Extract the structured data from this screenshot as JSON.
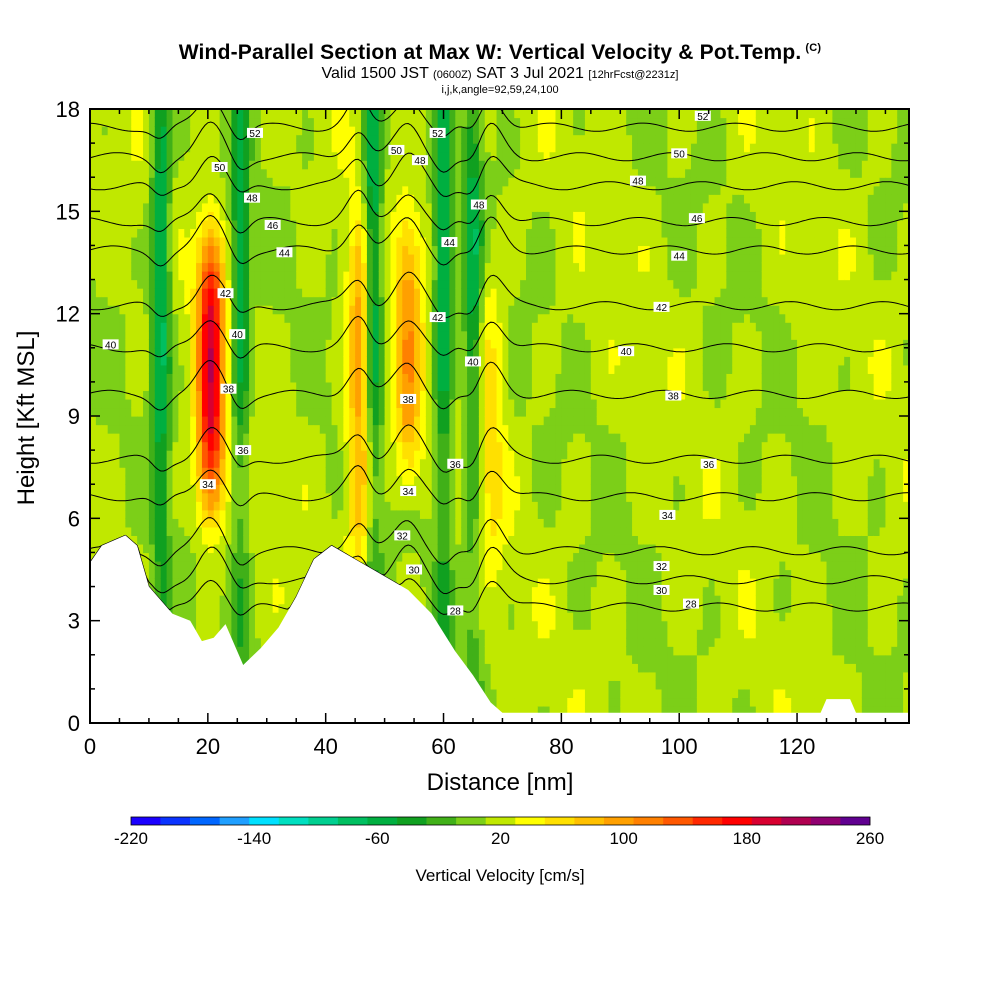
{
  "header": {
    "title": "Wind-Parallel Section at Max W: Vertical Velocity & Pot.Temp.",
    "copyright": "(C)",
    "valid_prefix": "Valid 1500 JST",
    "valid_zulu": "(0600Z)",
    "valid_date": "SAT 3 Jul 2021",
    "forecast": "[12hrFcst@2231z]",
    "indices": "i,j,k,angle=92,59,24,100"
  },
  "chart_data": {
    "type": "heatmap",
    "title": "Wind-Parallel Section at Max W: Vertical Velocity & Pot.Temp.",
    "xlabel": "Distance [nm]",
    "ylabel": "Height [Kft MSL]",
    "xlim": [
      0,
      139
    ],
    "ylim": [
      0,
      18
    ],
    "x_ticks": [
      0,
      20,
      40,
      60,
      80,
      100,
      120
    ],
    "y_ticks": [
      0,
      3,
      6,
      9,
      12,
      15,
      18
    ],
    "colorbar": {
      "label": "Vertical Velocity [cm/s]",
      "tick_values": [
        -220,
        -140,
        -60,
        20,
        100,
        180,
        260
      ],
      "tick_labels": [
        "-220",
        "-140",
        "-60",
        "20",
        "100",
        "180",
        "260"
      ],
      "colors": [
        "#1a00ff",
        "#0a33ff",
        "#0066ff",
        "#1f9fff",
        "#00e0ff",
        "#00dfc0",
        "#00cf90",
        "#00bf60",
        "#00af40",
        "#10a020",
        "#40b018",
        "#7ccf18",
        "#c0e800",
        "#ffff00",
        "#ffe000",
        "#ffc000",
        "#ffa000",
        "#ff8000",
        "#ff5800",
        "#ff2800",
        "#ff0000",
        "#d80030",
        "#b00050",
        "#900070",
        "#600090"
      ]
    },
    "updrafts": [
      {
        "x": 20.5,
        "z_min": 7.5,
        "z_max": 13,
        "w_max": 190
      },
      {
        "x": 46,
        "z_min": 6,
        "z_max": 13.5,
        "w_max": 110
      },
      {
        "x": 54,
        "z_min": 8.5,
        "z_max": 13.5,
        "w_max": 100
      },
      {
        "x": 68,
        "z_min": 6,
        "z_max": 12,
        "w_max": 60
      }
    ],
    "downdrafts": [
      {
        "x": 12,
        "w_min": -80
      },
      {
        "x": 25.5,
        "w_min": -60
      },
      {
        "x": 48,
        "w_min": -90
      },
      {
        "x": 60,
        "w_min": -70
      },
      {
        "x": 65,
        "w_min": -60
      }
    ],
    "terrain": [
      [
        0,
        4.7
      ],
      [
        2,
        5.2
      ],
      [
        6,
        5.5
      ],
      [
        8,
        5.2
      ],
      [
        10,
        4
      ],
      [
        14,
        3.2
      ],
      [
        17,
        3
      ],
      [
        19,
        2.4
      ],
      [
        21,
        2.5
      ],
      [
        23,
        2.9
      ],
      [
        26,
        1.7
      ],
      [
        29,
        2.2
      ],
      [
        32,
        2.8
      ],
      [
        35,
        3.7
      ],
      [
        38,
        4.8
      ],
      [
        41,
        5.2
      ],
      [
        45,
        4.8
      ],
      [
        49,
        4.4
      ],
      [
        54,
        3.9
      ],
      [
        58,
        3.2
      ],
      [
        62,
        2.1
      ],
      [
        65,
        1.4
      ],
      [
        68,
        0.6
      ],
      [
        70,
        0.3
      ],
      [
        124,
        0.3
      ],
      [
        125,
        0.7
      ],
      [
        129,
        0.7
      ],
      [
        130,
        0.3
      ],
      [
        139,
        0.3
      ]
    ],
    "theta_contours": [
      {
        "value": 28,
        "labels": [
          {
            "x": 62,
            "z": 3.3
          },
          {
            "x": 102,
            "z": 3.5
          }
        ]
      },
      {
        "value": 30,
        "labels": [
          {
            "x": 55,
            "z": 4.5
          },
          {
            "x": 97,
            "z": 3.9
          }
        ]
      },
      {
        "value": 32,
        "labels": [
          {
            "x": 53,
            "z": 5.5
          },
          {
            "x": 97,
            "z": 4.6
          }
        ]
      },
      {
        "value": 34,
        "labels": [
          {
            "x": 20,
            "z": 7
          },
          {
            "x": 54,
            "z": 6.8
          },
          {
            "x": 98,
            "z": 6.1
          }
        ]
      },
      {
        "value": 36,
        "labels": [
          {
            "x": 26,
            "z": 8
          },
          {
            "x": 62,
            "z": 7.6
          },
          {
            "x": 105,
            "z": 7.6
          }
        ]
      },
      {
        "value": 38,
        "labels": [
          {
            "x": 23.5,
            "z": 9.8
          },
          {
            "x": 54,
            "z": 9.5
          },
          {
            "x": 99,
            "z": 9.6
          }
        ]
      },
      {
        "value": 40,
        "labels": [
          {
            "x": 3.5,
            "z": 11.1
          },
          {
            "x": 25,
            "z": 11.4
          },
          {
            "x": 65,
            "z": 10.6
          },
          {
            "x": 91,
            "z": 10.9
          }
        ]
      },
      {
        "value": 42,
        "labels": [
          {
            "x": 23,
            "z": 12.6
          },
          {
            "x": 59,
            "z": 11.9
          },
          {
            "x": 97,
            "z": 12.2
          }
        ]
      },
      {
        "value": 44,
        "labels": [
          {
            "x": 33,
            "z": 13.8
          },
          {
            "x": 61,
            "z": 14.1
          },
          {
            "x": 100,
            "z": 13.7
          }
        ]
      },
      {
        "value": 46,
        "labels": [
          {
            "x": 31,
            "z": 14.6
          },
          {
            "x": 103,
            "z": 14.8
          }
        ]
      },
      {
        "value": 48,
        "labels": [
          {
            "x": 27.5,
            "z": 15.4
          },
          {
            "x": 56,
            "z": 16.5
          },
          {
            "x": 66,
            "z": 15.2
          },
          {
            "x": 93,
            "z": 15.9
          }
        ]
      },
      {
        "value": 50,
        "labels": [
          {
            "x": 22,
            "z": 16.3
          },
          {
            "x": 52,
            "z": 16.8
          },
          {
            "x": 100,
            "z": 16.7
          }
        ]
      },
      {
        "value": 52,
        "labels": [
          {
            "x": 28,
            "z": 17.3
          },
          {
            "x": 59,
            "z": 17.3
          },
          {
            "x": 104,
            "z": 17.8
          }
        ]
      }
    ]
  }
}
